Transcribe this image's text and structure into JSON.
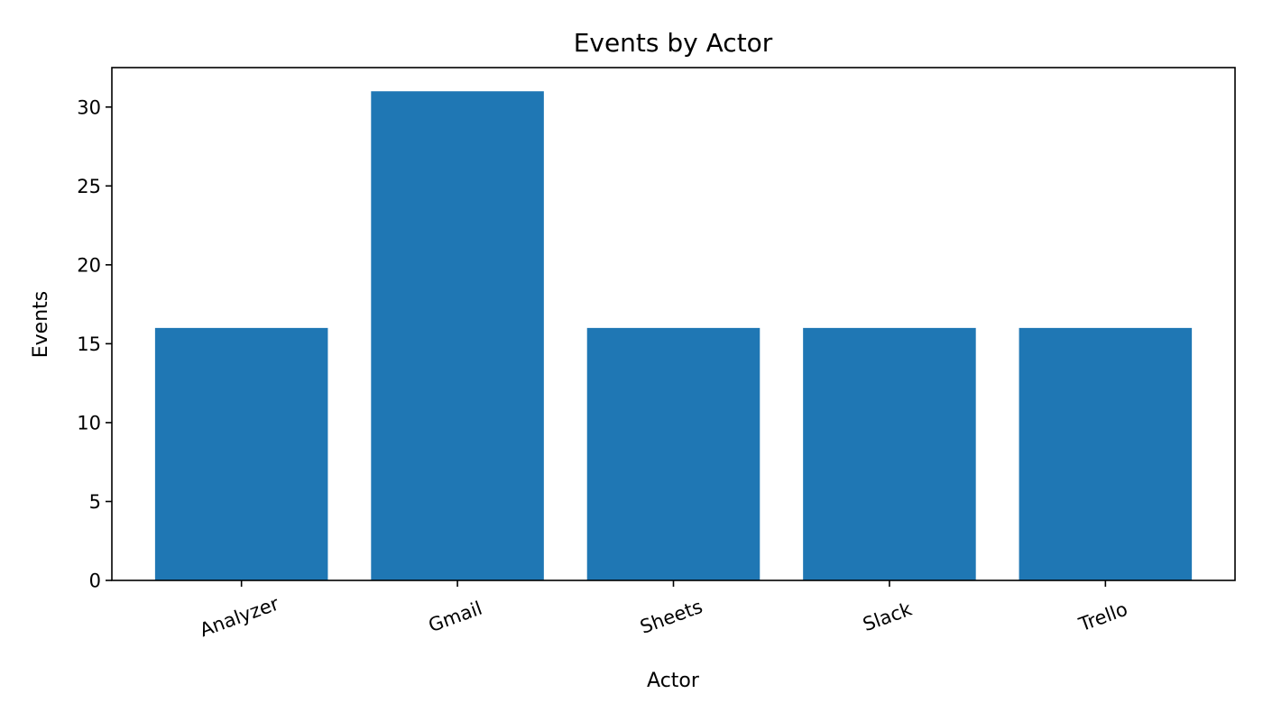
{
  "chart_data": {
    "type": "bar",
    "title": "Events by Actor",
    "xlabel": "Actor",
    "ylabel": "Events",
    "categories": [
      "Analyzer",
      "Gmail",
      "Sheets",
      "Slack",
      "Trello"
    ],
    "values": [
      16,
      31,
      16,
      16,
      16
    ],
    "ylim": [
      0,
      32.5
    ],
    "yticks": [
      0,
      5,
      10,
      15,
      20,
      25,
      30
    ],
    "grid": false,
    "bar_color": "#1f77b4",
    "x_tick_rotation_deg": -20
  }
}
